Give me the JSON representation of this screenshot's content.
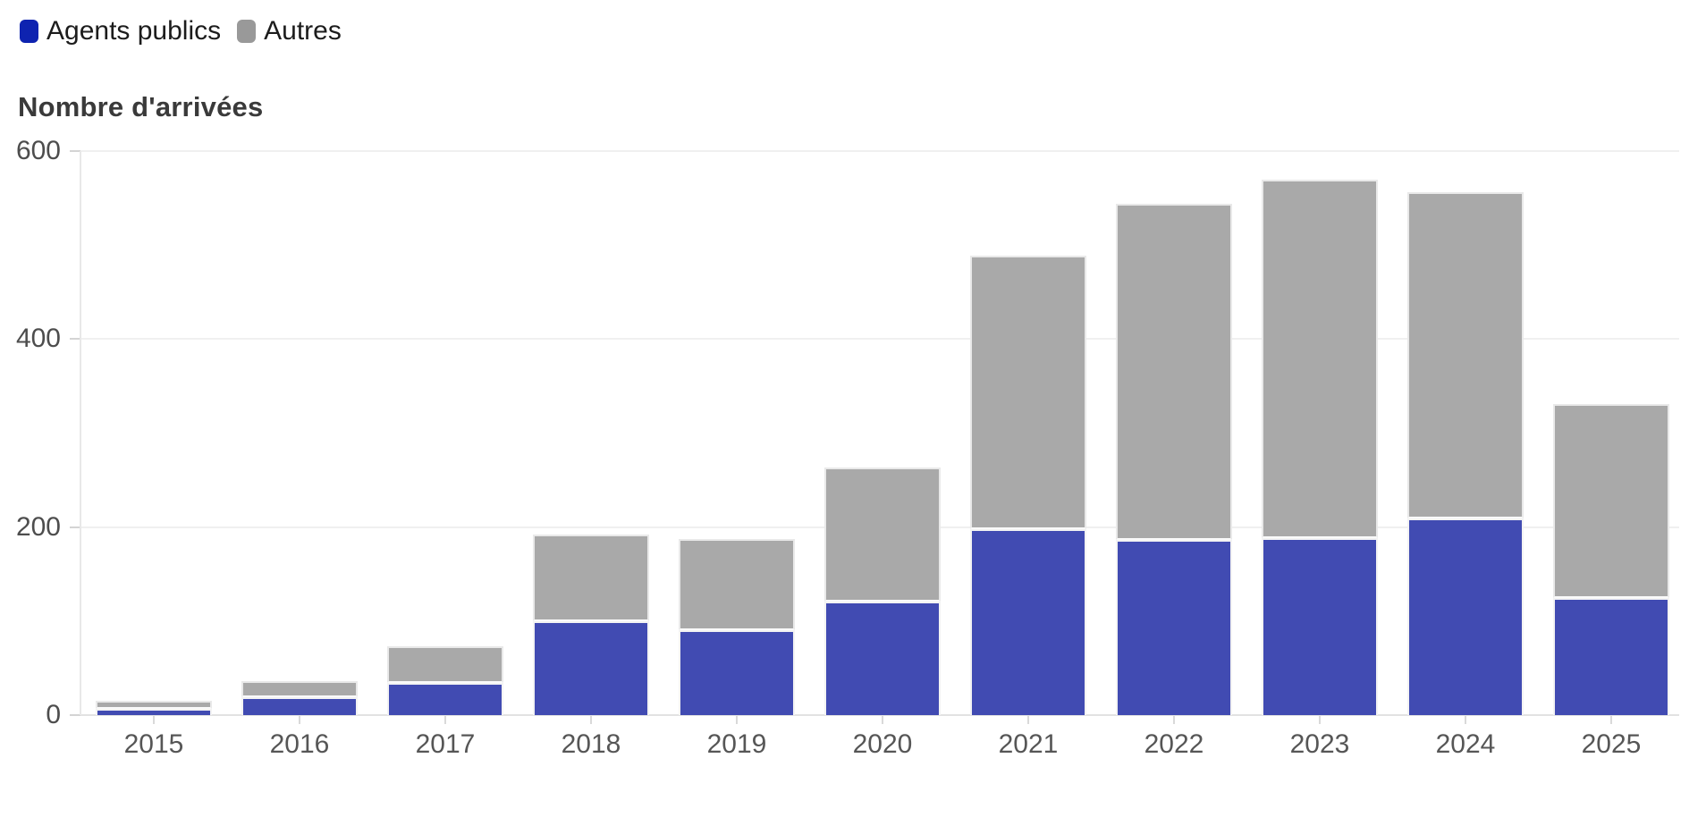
{
  "legend": {
    "items": [
      {
        "label": "Agents publics",
        "color": "#0e23b0"
      },
      {
        "label": "Autres",
        "color": "#999999"
      }
    ]
  },
  "chart_data": {
    "type": "bar",
    "stacked": true,
    "title": "Nombre d'arrivées",
    "xlabel": "",
    "ylabel": "Nombre d'arrivées",
    "categories": [
      "2015",
      "2016",
      "2017",
      "2018",
      "2019",
      "2020",
      "2021",
      "2022",
      "2023",
      "2024",
      "2025"
    ],
    "series": [
      {
        "name": "Agents publics",
        "color": "#414bb2",
        "values": [
          7,
          19,
          34,
          100,
          90,
          121,
          198,
          186,
          188,
          209,
          125
        ]
      },
      {
        "name": "Autres",
        "color": "#a9a9a9",
        "values": [
          8,
          17,
          39,
          92,
          97,
          142,
          291,
          358,
          382,
          347,
          206
        ]
      }
    ],
    "totals": [
      15,
      36,
      73,
      192,
      187,
      263,
      489,
      544,
      570,
      556,
      331
    ],
    "ylim": [
      0,
      600
    ],
    "yticks": [
      0,
      200,
      400,
      600
    ],
    "grid": true,
    "legend_position": "top-left"
  }
}
